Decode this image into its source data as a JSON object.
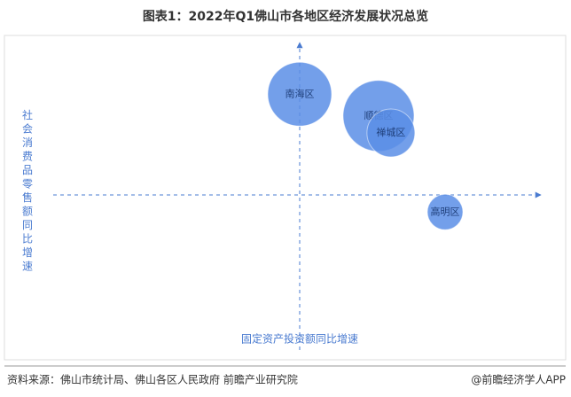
{
  "chart_data": {
    "type": "bubble",
    "title": "图表1：2022年Q1佛山市各地区经济发展状况总览",
    "x_label": "固定资产投资额同比增速",
    "y_label": "社会消费品零售额同比增速",
    "xlim": [
      -10,
      10
    ],
    "ylim": [
      -10,
      10
    ],
    "color": "#5b8ee6",
    "points": [
      {
        "name": "南海区",
        "x": 0,
        "y": 6.5,
        "size": 36
      },
      {
        "name": "顺德区",
        "x": 3.2,
        "y": 5.1,
        "size": 40
      },
      {
        "name": "禅城区",
        "x": 3.7,
        "y": 4.0,
        "size": 27
      },
      {
        "name": "高明区",
        "x": 5.9,
        "y": -1.1,
        "size": 20
      }
    ],
    "source": "资料来源：佛山市统计局、佛山各区人民政府 前瞻产业研究院",
    "credit": "@前瞻经济学人APP"
  }
}
